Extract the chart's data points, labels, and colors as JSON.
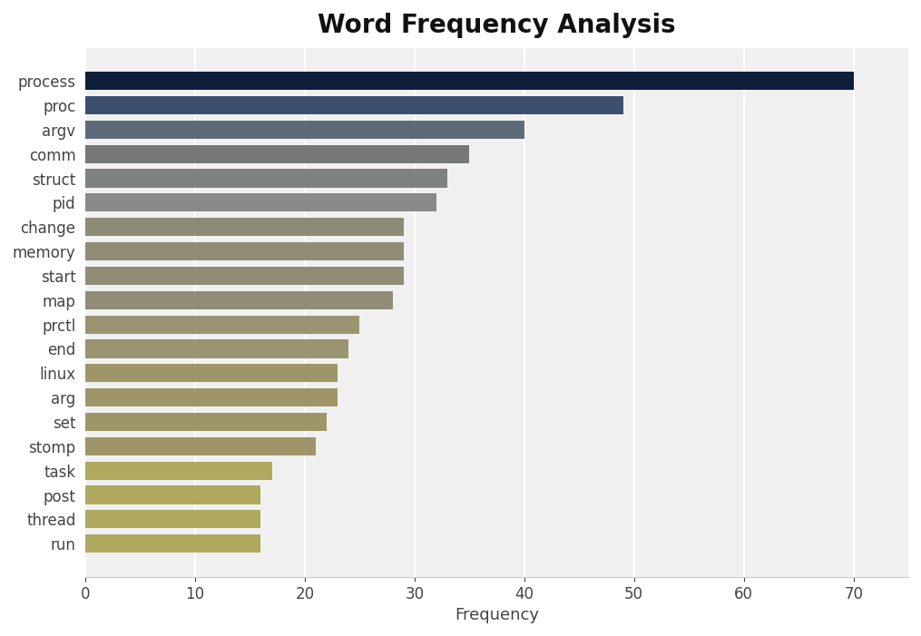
{
  "title": "Word Frequency Analysis",
  "xlabel": "Frequency",
  "categories": [
    "process",
    "proc",
    "argv",
    "comm",
    "struct",
    "pid",
    "change",
    "memory",
    "start",
    "map",
    "prctl",
    "end",
    "linux",
    "arg",
    "set",
    "stomp",
    "task",
    "post",
    "thread",
    "run"
  ],
  "values": [
    70,
    49,
    40,
    35,
    33,
    32,
    29,
    29,
    29,
    28,
    25,
    24,
    23,
    23,
    22,
    21,
    17,
    16,
    16,
    16
  ],
  "bar_colors": [
    "#0d1f3c",
    "#3d4f6e",
    "#5d6b78",
    "#747878",
    "#7e8282",
    "#8a8a8a",
    "#8e8a78",
    "#908c78",
    "#908c78",
    "#908c78",
    "#9a9472",
    "#9a9472",
    "#9e9668",
    "#9e9668",
    "#9e9668",
    "#9e9668",
    "#b0a85e",
    "#b0a85e",
    "#b0a85e",
    "#b0a85e"
  ],
  "fig_bg_color": "#ffffff",
  "plot_bg_color": "#f0f0f0",
  "xlim": [
    0,
    75
  ],
  "xticks": [
    0,
    10,
    20,
    30,
    40,
    50,
    60,
    70
  ],
  "title_fontsize": 20,
  "axis_fontsize": 13,
  "tick_fontsize": 12,
  "bar_height": 0.75
}
